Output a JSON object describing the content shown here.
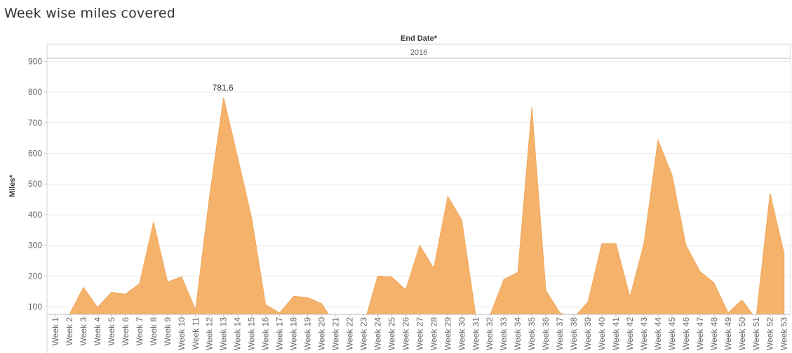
{
  "title": "Week wise miles covered",
  "column_header": {
    "field": "End Date*",
    "value": "2016"
  },
  "colors": {
    "area": "#f5b26b",
    "area_stroke": "#efa95e",
    "grid": "#ececec",
    "axis": "#cfcfcf"
  },
  "chart_data": {
    "type": "area",
    "ylabel": "Miles*",
    "yticks": [
      100,
      200,
      300,
      400,
      500,
      600,
      700,
      800,
      900
    ],
    "ylim": [
      75,
      910
    ],
    "grid": true,
    "categories": [
      "Week 1",
      "Week 2",
      "Week 3",
      "Week 4",
      "Week 5",
      "Week 6",
      "Week 7",
      "Week 8",
      "Week 9",
      "Week 10",
      "Week 11",
      "Week 12",
      "Week 13",
      "Week 14",
      "Week 15",
      "Week 16",
      "Week 17",
      "Week 18",
      "Week 19",
      "Week 20",
      "Week 21",
      "Week 22",
      "Week 23",
      "Week 24",
      "Week 25",
      "Week 26",
      "Week 27",
      "Week 28",
      "Week 29",
      "Week 30",
      "Week 31",
      "Week 32",
      "Week 33",
      "Week 34",
      "Week 35",
      "Week 36",
      "Week 37",
      "Week 38",
      "Week 39",
      "Week 40",
      "Week 41",
      "Week 42",
      "Week 43",
      "Week 44",
      "Week 45",
      "Week 46",
      "Week 47",
      "Week 48",
      "Week 49",
      "Week 50",
      "Week 51",
      "Week 52",
      "Week 53"
    ],
    "values": [
      35,
      75,
      163,
      98,
      147,
      141,
      175,
      376,
      181,
      198,
      90,
      460,
      781.6,
      588,
      390,
      107,
      80,
      134,
      130,
      110,
      40,
      30,
      40,
      200,
      197,
      155,
      300,
      225,
      460,
      382,
      70,
      70,
      189,
      212,
      750,
      153,
      80,
      65,
      115,
      306,
      306,
      132,
      306,
      643,
      530,
      300,
      215,
      178,
      80,
      122,
      60,
      470,
      273
    ],
    "annotations": [
      {
        "category": "Week 13",
        "label": "781.6"
      }
    ]
  }
}
